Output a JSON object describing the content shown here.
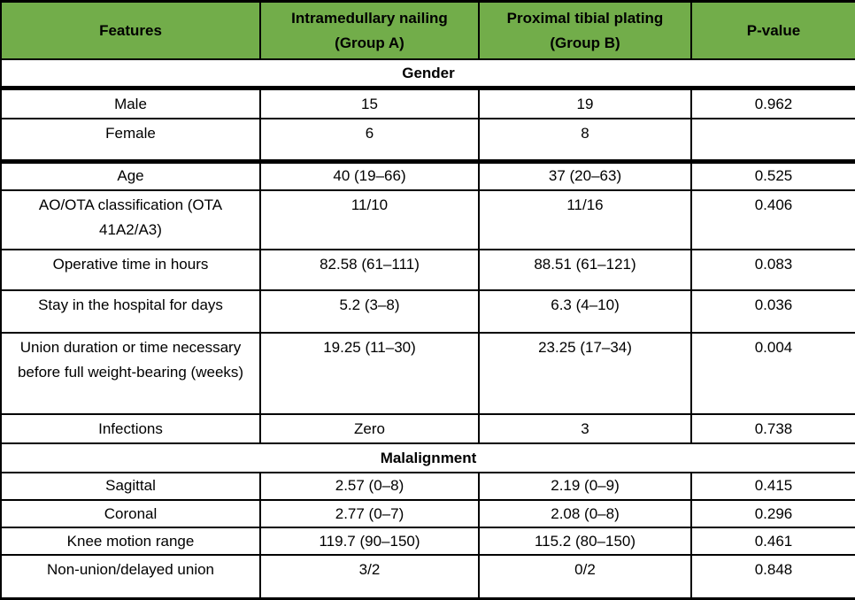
{
  "table": {
    "columns": [
      {
        "label": "Features"
      },
      {
        "label": "Intramedullary nailing (Group A)"
      },
      {
        "label": "Proximal tibial plating (Group B)"
      },
      {
        "label": "P-value"
      }
    ],
    "rows": [
      {
        "type": "section",
        "label": "Gender"
      },
      {
        "type": "data",
        "feature": "Male",
        "group_a": "15",
        "group_b": "19",
        "p_value": "0.962"
      },
      {
        "type": "data",
        "feature": "Female",
        "group_a": "6",
        "group_b": "8",
        "p_value": ""
      },
      {
        "type": "data",
        "feature": "Age",
        "group_a": "40 (19–66)",
        "group_b": "37 (20–63)",
        "p_value": "0.525"
      },
      {
        "type": "data",
        "feature": "AO/OTA classification (OTA 41A2/A3)",
        "group_a": "11/10",
        "group_b": "11/16",
        "p_value": "0.406"
      },
      {
        "type": "data",
        "feature": "Operative time in hours",
        "group_a": "82.58 (61–111)",
        "group_b": "88.51 (61–121)",
        "p_value": "0.083"
      },
      {
        "type": "data",
        "feature": "Stay in the hospital for days",
        "group_a": "5.2 (3–8)",
        "group_b": "6.3 (4–10)",
        "p_value": "0.036"
      },
      {
        "type": "data",
        "feature": "Union duration or time necessary before full weight-bearing (weeks)",
        "group_a": "19.25 (11–30)",
        "group_b": "23.25 (17–34)",
        "p_value": "0.004"
      },
      {
        "type": "data",
        "feature": "Infections",
        "group_a": "Zero",
        "group_b": "3",
        "p_value": "0.738"
      },
      {
        "type": "section",
        "label": "Malalignment"
      },
      {
        "type": "data",
        "feature": "Sagittal",
        "group_a": "2.57 (0–8)",
        "group_b": "2.19 (0–9)",
        "p_value": "0.415"
      },
      {
        "type": "data",
        "feature": "Coronal",
        "group_a": "2.77 (0–7)",
        "group_b": "2.08 (0–8)",
        "p_value": "0.296"
      },
      {
        "type": "data",
        "feature": "Knee motion range",
        "group_a": "119.7 (90–150)",
        "group_b": "115.2 (80–150)",
        "p_value": "0.461"
      },
      {
        "type": "data",
        "feature": "Non-union/delayed union",
        "group_a": "3/2",
        "group_b": "0/2",
        "p_value": "0.848"
      }
    ]
  },
  "colors": {
    "header_bg": "#72ad4a",
    "border": "#000000",
    "text": "#000000"
  }
}
